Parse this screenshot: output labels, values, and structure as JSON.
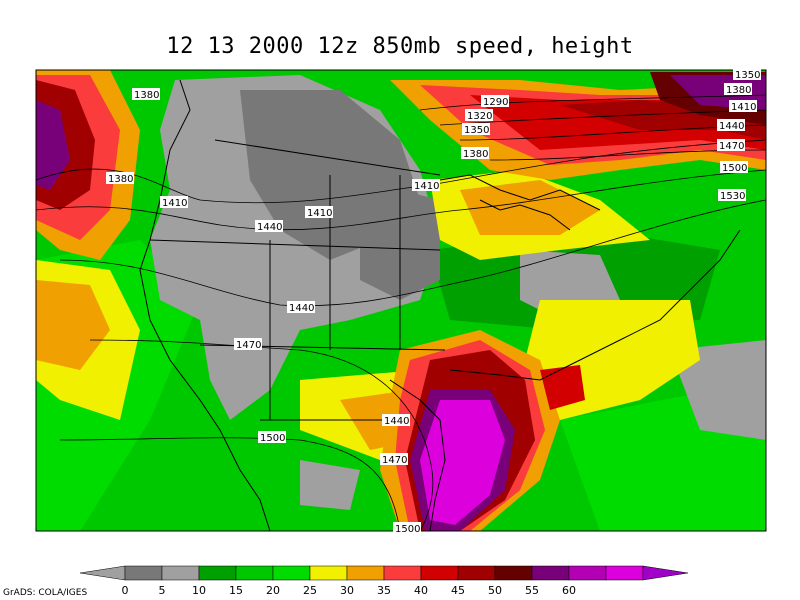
{
  "title": "12 13 2000 12z 850mb speed, height",
  "footer": "GrADS: COLA/IGES",
  "colorbar": {
    "ticks": [
      "0",
      "5",
      "10",
      "15",
      "20",
      "25",
      "30",
      "35",
      "40",
      "45",
      "50",
      "55",
      "60"
    ],
    "colors": [
      "#a0a0a0",
      "#787878",
      "#a0a0a0",
      "#00a000",
      "#00c800",
      "#00dc00",
      "#f0f000",
      "#f0a000",
      "#fa3c3c",
      "#d20000",
      "#a00000",
      "#640000",
      "#780078",
      "#b400b4",
      "#dc00dc",
      "#a000c8"
    ],
    "bins": [
      "#787878",
      "#a0a0a0",
      "#00a000",
      "#00c800",
      "#00dc00",
      "#f0f000",
      "#f0a000",
      "#fa3c3c",
      "#d20000",
      "#a00000",
      "#640000",
      "#780078",
      "#b400b4",
      "#dc00dc"
    ]
  },
  "contour_labels": [
    {
      "text": "1380",
      "id": "c1"
    },
    {
      "text": "1380",
      "id": "c2"
    },
    {
      "text": "1410",
      "id": "c3"
    },
    {
      "text": "1440",
      "id": "c4"
    },
    {
      "text": "1410",
      "id": "c5"
    },
    {
      "text": "1440",
      "id": "c6"
    },
    {
      "text": "1470",
      "id": "c7"
    },
    {
      "text": "1440",
      "id": "c8"
    },
    {
      "text": "1500",
      "id": "c9"
    },
    {
      "text": "1470",
      "id": "c10"
    },
    {
      "text": "1500",
      "id": "c11"
    },
    {
      "text": "1290",
      "id": "c12"
    },
    {
      "text": "1320",
      "id": "c13"
    },
    {
      "text": "1350",
      "id": "c14"
    },
    {
      "text": "1380",
      "id": "c15"
    },
    {
      "text": "1410",
      "id": "c16"
    },
    {
      "text": "1350",
      "id": "c17"
    },
    {
      "text": "1380",
      "id": "c18"
    },
    {
      "text": "1410",
      "id": "c19"
    },
    {
      "text": "1440",
      "id": "c20"
    },
    {
      "text": "1470",
      "id": "c21"
    },
    {
      "text": "1500",
      "id": "c22"
    },
    {
      "text": "1530",
      "id": "c23"
    }
  ]
}
